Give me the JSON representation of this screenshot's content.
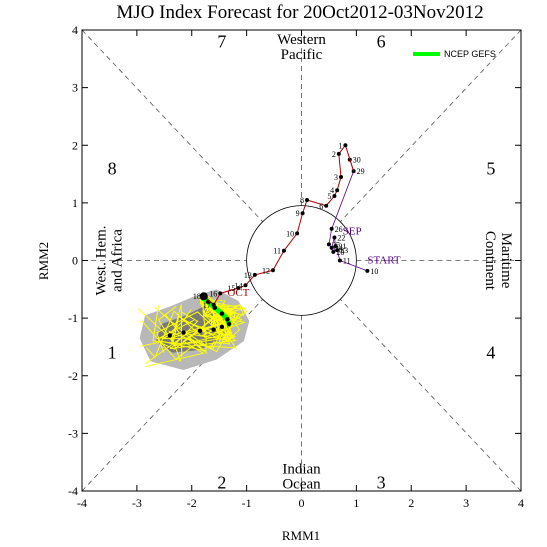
{
  "chart_data": {
    "type": "scatter",
    "title": "MJO Index Forecast for 20Oct2012-03Nov2012",
    "xlabel": "RMM1",
    "ylabel": "RMM2",
    "xlim": [
      -4,
      4
    ],
    "ylim": [
      -4,
      4
    ],
    "x_ticks": [
      "-4",
      "-3",
      "-2",
      "-1",
      "0",
      "1",
      "2",
      "3",
      "4"
    ],
    "y_ticks": [
      "-4",
      "-3",
      "-2",
      "-1",
      "0",
      "1",
      "2",
      "3",
      "4"
    ],
    "phase_numbers": [
      "1",
      "2",
      "3",
      "4",
      "5",
      "6",
      "7",
      "8"
    ],
    "regions": {
      "top": [
        "Western",
        "Pacific"
      ],
      "bottom": [
        "Indian",
        "Ocean"
      ],
      "left": [
        "West. Hem.",
        "and Africa"
      ],
      "right": [
        "Maritime",
        "Continent"
      ]
    },
    "legend": {
      "label": "NCEP GEFS",
      "color": "#00ff00",
      "position": "top-right"
    },
    "unit_circle_radius": 1,
    "observed": {
      "color": "#b00000",
      "points": [
        {
          "x": 0.8,
          "y": 2.0,
          "label": "1"
        },
        {
          "x": 0.68,
          "y": 1.85,
          "label": "2"
        },
        {
          "x": 0.72,
          "y": 1.45,
          "label": "3"
        },
        {
          "x": 0.65,
          "y": 1.22,
          "label": "4"
        },
        {
          "x": 0.6,
          "y": 1.12,
          "label": "5"
        },
        {
          "x": 0.45,
          "y": 0.95,
          "label": "6"
        },
        {
          "x": 0.1,
          "y": 1.05,
          "label": "8"
        },
        {
          "x": 0.02,
          "y": 0.82,
          "label": "9"
        },
        {
          "x": -0.08,
          "y": 0.47,
          "label": "10"
        },
        {
          "x": -0.32,
          "y": 0.17,
          "label": "11"
        },
        {
          "x": -0.52,
          "y": -0.17,
          "label": "12"
        },
        {
          "x": -0.85,
          "y": -0.25,
          "label": "13"
        },
        {
          "x": -1.02,
          "y": -0.43,
          "label": "14"
        },
        {
          "x": -1.15,
          "y": -0.48,
          "label": "15"
        },
        {
          "x": -1.48,
          "y": -0.57,
          "label": "16"
        },
        {
          "x": -1.6,
          "y": -0.77,
          "label": "17"
        },
        {
          "x": -1.78,
          "y": -0.62,
          "label": "18"
        }
      ]
    },
    "september": {
      "color": "#000000",
      "points": [
        {
          "x": 0.88,
          "y": 1.75,
          "label": "30"
        },
        {
          "x": 0.95,
          "y": 1.55,
          "label": "29"
        },
        {
          "x": 0.55,
          "y": 0.55,
          "label": "26"
        },
        {
          "x": 0.5,
          "y": 0.28,
          "label": "25"
        },
        {
          "x": 0.55,
          "y": 0.22,
          "label": "24"
        },
        {
          "x": 0.6,
          "y": 0.4,
          "label": "22"
        },
        {
          "x": 0.62,
          "y": 0.25,
          "label": "21"
        },
        {
          "x": 0.58,
          "y": 0.15,
          "label": "20"
        },
        {
          "x": 0.65,
          "y": 0.18,
          "label": "23"
        },
        {
          "x": 0.7,
          "y": 0.0,
          "label": "11"
        },
        {
          "x": 1.2,
          "y": -0.18,
          "label": "10"
        }
      ]
    },
    "forecast_mean": [
      {
        "x": -1.8,
        "y": -0.65
      },
      {
        "x": -1.7,
        "y": -0.72
      },
      {
        "x": -1.58,
        "y": -0.82
      },
      {
        "x": -1.45,
        "y": -0.92
      },
      {
        "x": -1.35,
        "y": -1.02
      },
      {
        "x": -1.32,
        "y": -1.1
      },
      {
        "x": -1.45,
        "y": -1.15
      },
      {
        "x": -1.6,
        "y": -1.2
      },
      {
        "x": -1.85,
        "y": -1.22
      },
      {
        "x": -2.15,
        "y": -1.25
      },
      {
        "x": -2.4,
        "y": -1.3
      }
    ],
    "annotations": [
      {
        "text": "OCT",
        "x": -1.35,
        "y": -0.62,
        "color": "#b00000"
      },
      {
        "text": "SEP",
        "x": 0.75,
        "y": 0.45,
        "color": "#5a0090"
      },
      {
        "text": "START",
        "x": 1.2,
        "y": -0.05,
        "color": "#5a0090"
      }
    ],
    "colors": {
      "observed": "#b00000",
      "ensemble": "#ffff00",
      "shade_outer": "#b8b8b8",
      "shade_inner": "#7a7a7a",
      "legend": "#00ff00"
    }
  }
}
